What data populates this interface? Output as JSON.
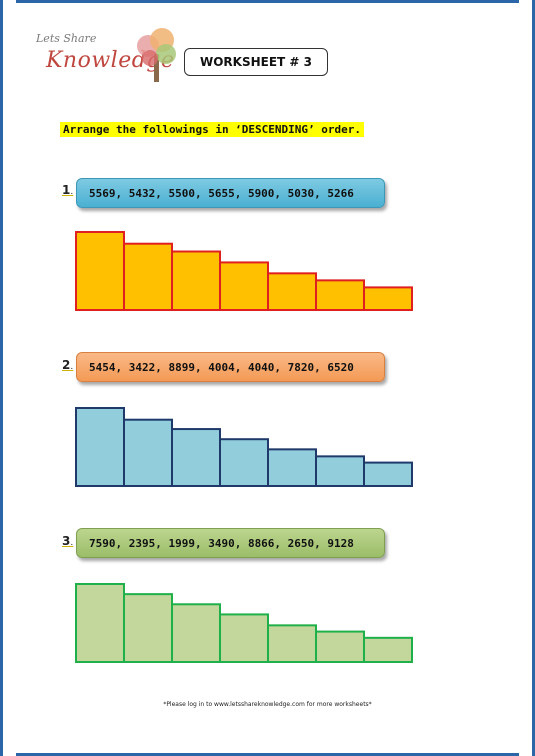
{
  "logo": {
    "line1": "Lets Share",
    "line2": "Knowledge"
  },
  "worksheet": {
    "title": "WORKSHEET # 3"
  },
  "instruction": "Arrange the followings in ‘DESCENDING’ order.",
  "questions": [
    {
      "number": "1",
      "numbers": "5569, 5432, 5500, 5655, 5900, 5030, 5266",
      "bar_fill": "#ffc000",
      "bar_stroke": "#e02020",
      "bar_levels": [
        1.0,
        0.85,
        0.75,
        0.61,
        0.47,
        0.38,
        0.29
      ]
    },
    {
      "number": "2",
      "numbers": "5454, 3422, 8899, 4004, 4040, 7820, 6520",
      "bar_fill": "#92cddc",
      "bar_stroke": "#1f3a6a",
      "bar_levels": [
        1.0,
        0.85,
        0.73,
        0.6,
        0.47,
        0.38,
        0.3
      ]
    },
    {
      "number": "3",
      "numbers": "7590, 2395, 1999, 3490, 8866, 2650, 9128",
      "bar_fill": "#c3d69b",
      "bar_stroke": "#1fb04a",
      "bar_levels": [
        1.0,
        0.87,
        0.74,
        0.61,
        0.47,
        0.39,
        0.31
      ]
    }
  ],
  "footer": "*Please log in to www.letsshareknowledge.com for more worksheets*"
}
